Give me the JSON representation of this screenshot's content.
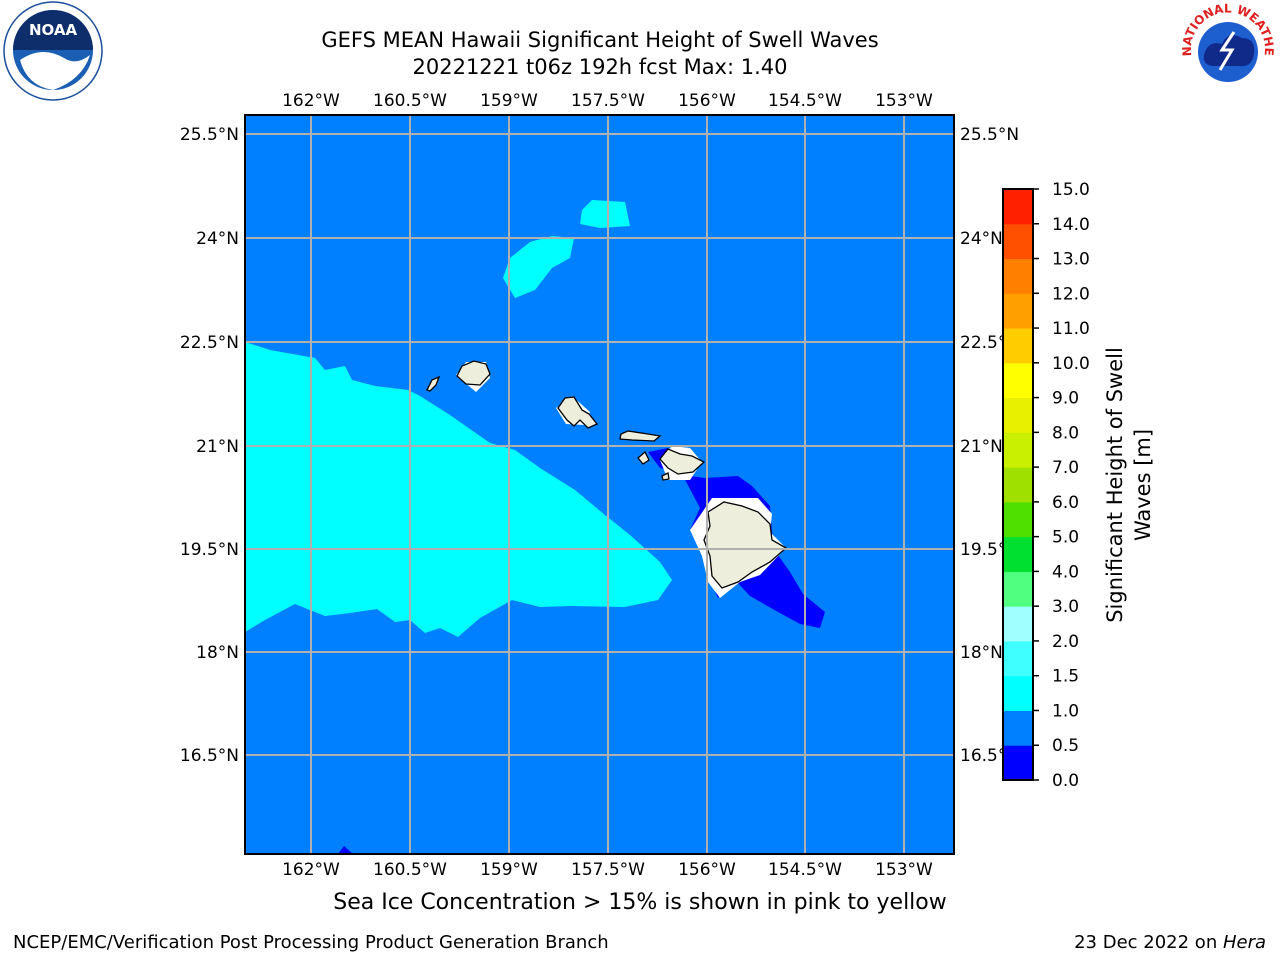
{
  "title_line1": "GEFS MEAN Hawaii Significant Height of Swell Waves",
  "title_line2": "20221221 t06z 192h fcst   Max: 1.40",
  "map": {
    "lon_ticks": [
      "162°W",
      "160.5°W",
      "159°W",
      "157.5°W",
      "156°W",
      "154.5°W",
      "153°W"
    ],
    "lat_ticks": [
      "25.5°N",
      "24°N",
      "22.5°N",
      "21°N",
      "19.5°N",
      "18°N",
      "16.5°N"
    ],
    "colors": {
      "ocean_base": "#0080ff",
      "swell_high": "#00ffff",
      "swell_low": "#0000ff",
      "land": "#eeeedd",
      "grid": "#b0b0b0"
    }
  },
  "colorbar": {
    "label_line1": "Significant Height of Swell",
    "label_line2": "Waves [m]",
    "levels": [
      "0.0",
      "0.5",
      "1.0",
      "1.5",
      "2.0",
      "3.0",
      "4.0",
      "5.0",
      "6.0",
      "7.0",
      "8.0",
      "9.0",
      "10.0",
      "11.0",
      "12.0",
      "13.0",
      "14.0",
      "15.0"
    ],
    "colors": [
      "#0000ff",
      "#0080ff",
      "#00ffff",
      "#40ffff",
      "#a0ffff",
      "#50ff80",
      "#00e030",
      "#50e000",
      "#a0e000",
      "#c8f000",
      "#e8f000",
      "#ffff00",
      "#ffcc00",
      "#ffa000",
      "#ff8000",
      "#ff5000",
      "#ff2000"
    ]
  },
  "sea_ice_note": "Sea Ice Concentration > 15% is shown in pink to yellow",
  "footer_left": "NCEP/EMC/Verification Post Processing Product Generation Branch",
  "footer_date": "23 Dec 2022 on ",
  "footer_host": "Hera",
  "logos": {
    "noaa_text": "NOAA",
    "nws_text": "NATIONAL WEATHER SERVICE"
  }
}
